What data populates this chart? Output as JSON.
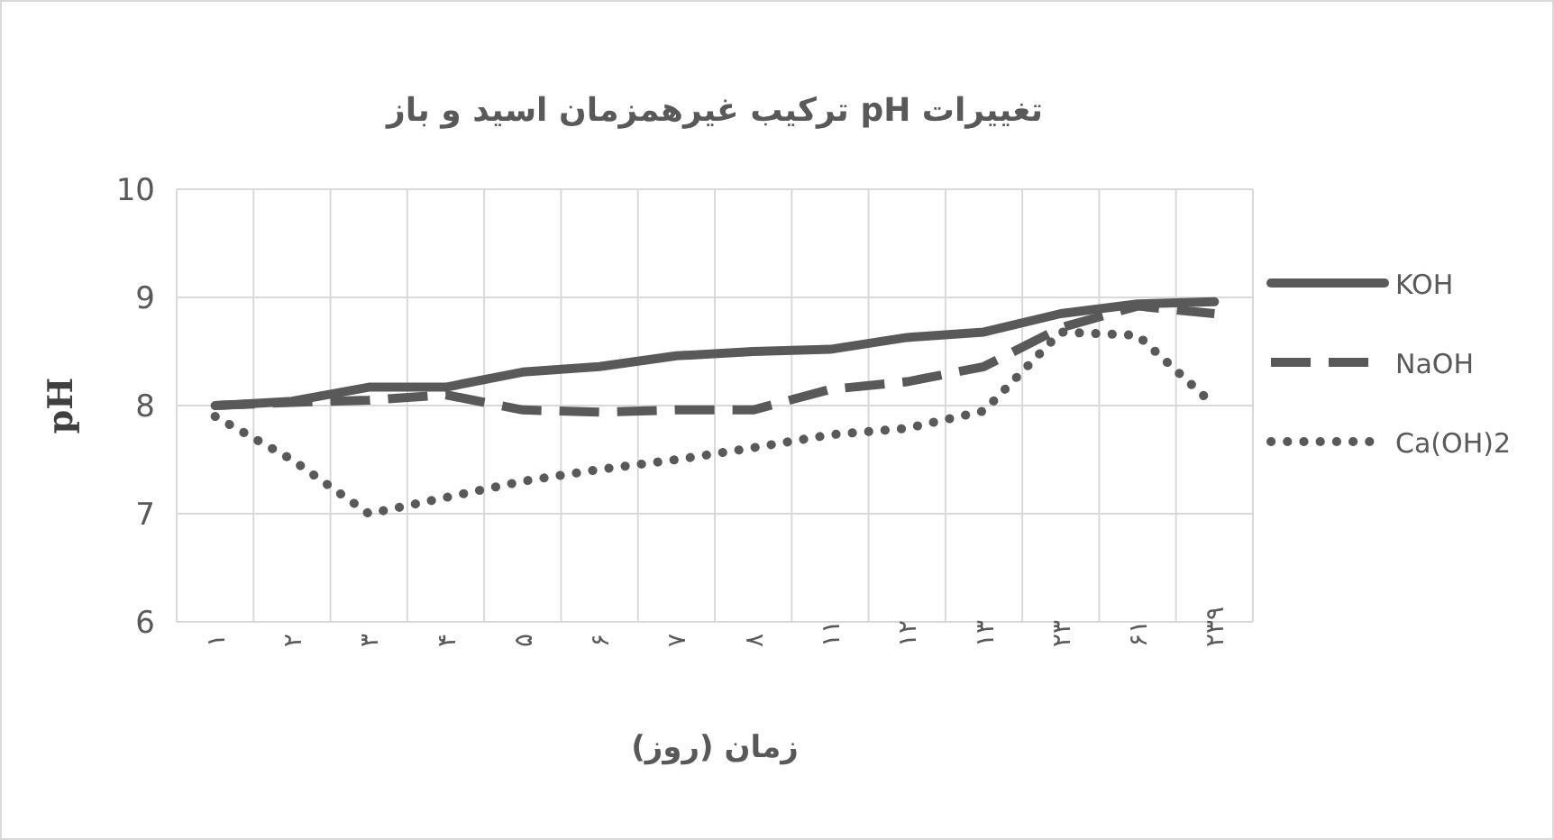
{
  "chart_data": {
    "type": "line",
    "title": "تغییرات pH ترکیب غیرهمزمان اسید و باز",
    "xlabel": "زمان (روز)",
    "ylabel": "pH",
    "categories": [
      "۱",
      "۲",
      "۳",
      "۴",
      "۵",
      "۶",
      "۷",
      "۸",
      "۱۱",
      "۱۲",
      "۱۳",
      "۲۳",
      "۶۱",
      "۲۳۹"
    ],
    "ylim": [
      6,
      10
    ],
    "yticks": [
      6,
      7,
      8,
      9,
      10
    ],
    "grid": true,
    "legend": "right",
    "marker": "none",
    "series": [
      {
        "name": "KOH",
        "color": "#595959",
        "line_style": "solid",
        "values": [
          8.0,
          8.04,
          8.17,
          8.17,
          8.31,
          8.36,
          8.46,
          8.5,
          8.52,
          8.63,
          8.68,
          8.85,
          8.94,
          8.96
        ]
      },
      {
        "name": "NaOH",
        "color": "#595959",
        "line_style": "dashed",
        "values": [
          8.0,
          8.03,
          8.05,
          8.1,
          7.96,
          7.94,
          7.96,
          7.96,
          8.15,
          8.22,
          8.36,
          8.72,
          8.92,
          8.85
        ]
      },
      {
        "name": "Ca(OH)2",
        "color": "#595959",
        "line_style": "dotted",
        "values": [
          7.9,
          7.5,
          7.0,
          7.15,
          7.3,
          7.41,
          7.5,
          7.61,
          7.73,
          7.79,
          7.95,
          8.68,
          8.65,
          8.0
        ]
      }
    ]
  }
}
